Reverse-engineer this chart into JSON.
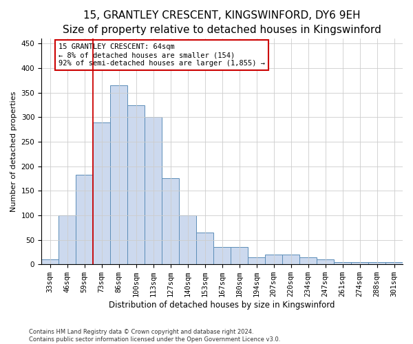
{
  "title": "15, GRANTLEY CRESCENT, KINGSWINFORD, DY6 9EH",
  "subtitle": "Size of property relative to detached houses in Kingswinford",
  "xlabel": "Distribution of detached houses by size in Kingswinford",
  "ylabel": "Number of detached properties",
  "categories": [
    "33sqm",
    "46sqm",
    "59sqm",
    "73sqm",
    "86sqm",
    "100sqm",
    "113sqm",
    "127sqm",
    "140sqm",
    "153sqm",
    "167sqm",
    "180sqm",
    "194sqm",
    "207sqm",
    "220sqm",
    "234sqm",
    "247sqm",
    "261sqm",
    "274sqm",
    "288sqm",
    "301sqm"
  ],
  "values": [
    10,
    100,
    183,
    290,
    365,
    325,
    300,
    175,
    100,
    65,
    35,
    35,
    15,
    20,
    20,
    15,
    10,
    5,
    5,
    5,
    5
  ],
  "bar_color": "#ccd9ee",
  "bar_edge_color": "#5b8db8",
  "vline_x": 2.5,
  "vline_color": "#cc0000",
  "annotation_text": "15 GRANTLEY CRESCENT: 64sqm\n← 8% of detached houses are smaller (154)\n92% of semi-detached houses are larger (1,855) →",
  "annotation_box_color": "#ffffff",
  "annotation_box_edge_color": "#cc0000",
  "ylim": [
    0,
    460
  ],
  "yticks": [
    0,
    50,
    100,
    150,
    200,
    250,
    300,
    350,
    400,
    450
  ],
  "footnote": "Contains HM Land Registry data © Crown copyright and database right 2024.\nContains public sector information licensed under the Open Government Licence v3.0.",
  "background_color": "#ffffff",
  "grid_color": "#cccccc",
  "title_fontsize": 11,
  "subtitle_fontsize": 9,
  "xlabel_fontsize": 8.5,
  "ylabel_fontsize": 8,
  "tick_fontsize": 7.5,
  "annotation_fontsize": 7.5,
  "footnote_fontsize": 6
}
